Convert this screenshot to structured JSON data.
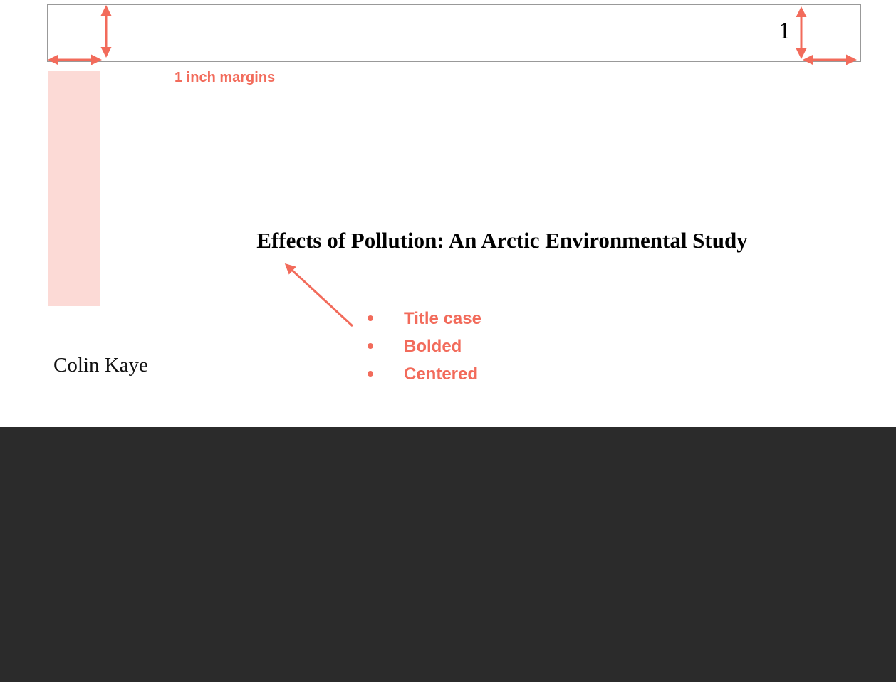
{
  "header": {
    "page_number": "1",
    "margin_note": "1 inch margins"
  },
  "title": "Effects of Pollution: An Arctic Environmental Study",
  "annotations": [
    "Title case",
    "Bolded",
    "Centered"
  ],
  "author": "Colin Kaye"
}
